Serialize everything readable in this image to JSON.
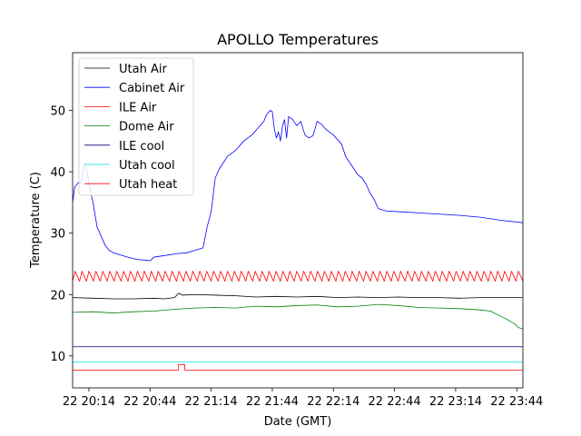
{
  "chart_data": {
    "type": "line",
    "title": "APOLLO Temperatures",
    "xlabel": "Date (GMT)",
    "ylabel": "Temperature (C)",
    "xlim": [
      0,
      221
    ],
    "ylim": [
      4.8,
      59.4
    ],
    "x_ticks": [
      {
        "x": 8,
        "label": "22 20:14"
      },
      {
        "x": 38,
        "label": "22 20:44"
      },
      {
        "x": 68,
        "label": "22 21:14"
      },
      {
        "x": 98,
        "label": "22 21:44"
      },
      {
        "x": 128,
        "label": "22 22:14"
      },
      {
        "x": 158,
        "label": "22 22:44"
      },
      {
        "x": 188,
        "label": "22 23:14"
      },
      {
        "x": 218,
        "label": "22 23:44"
      }
    ],
    "y_ticks": [
      {
        "y": 10,
        "label": "10"
      },
      {
        "y": 20,
        "label": "20"
      },
      {
        "y": 30,
        "label": "30"
      },
      {
        "y": 40,
        "label": "40"
      },
      {
        "y": 50,
        "label": "50"
      }
    ],
    "legend": {
      "position": "upper-left",
      "entries": [
        {
          "name": "Utah Air",
          "color": "#000000"
        },
        {
          "name": "Cabinet Air",
          "color": "#0000ff"
        },
        {
          "name": "ILE Air",
          "color": "#ff0000"
        },
        {
          "name": "Dome Air",
          "color": "#008000"
        },
        {
          "name": "ILE cool",
          "color": "#000080"
        },
        {
          "name": "Utah cool",
          "color": "#00e5e5"
        },
        {
          "name": "Utah heat",
          "color": "#ff0000"
        }
      ]
    },
    "series": [
      {
        "name": "Utah Air",
        "color": "#000000",
        "points": [
          [
            0,
            19.5
          ],
          [
            10,
            19.4
          ],
          [
            20,
            19.3
          ],
          [
            30,
            19.3
          ],
          [
            40,
            19.4
          ],
          [
            45,
            19.3
          ],
          [
            50,
            19.5
          ],
          [
            52,
            20.2
          ],
          [
            54,
            19.9
          ],
          [
            60,
            20.0
          ],
          [
            70,
            19.9
          ],
          [
            80,
            19.8
          ],
          [
            90,
            19.6
          ],
          [
            100,
            19.7
          ],
          [
            110,
            19.6
          ],
          [
            120,
            19.7
          ],
          [
            130,
            19.5
          ],
          [
            140,
            19.6
          ],
          [
            150,
            19.5
          ],
          [
            160,
            19.6
          ],
          [
            170,
            19.5
          ],
          [
            180,
            19.5
          ],
          [
            190,
            19.4
          ],
          [
            200,
            19.5
          ],
          [
            210,
            19.5
          ],
          [
            221,
            19.5
          ]
        ]
      },
      {
        "name": "Cabinet Air",
        "color": "#0000ff",
        "points": [
          [
            0,
            35.0
          ],
          [
            1,
            37.5
          ],
          [
            3,
            38.3
          ],
          [
            4,
            38.0
          ],
          [
            5,
            40.0
          ],
          [
            6,
            41.5
          ],
          [
            7,
            40.5
          ],
          [
            8,
            38.0
          ],
          [
            10,
            35.0
          ],
          [
            12,
            31.0
          ],
          [
            14,
            29.5
          ],
          [
            16,
            28.0
          ],
          [
            18,
            27.2
          ],
          [
            20,
            26.8
          ],
          [
            24,
            26.4
          ],
          [
            28,
            26.0
          ],
          [
            32,
            25.7
          ],
          [
            36,
            25.6
          ],
          [
            38,
            25.5
          ],
          [
            40,
            26.1
          ],
          [
            44,
            26.3
          ],
          [
            48,
            26.5
          ],
          [
            52,
            26.7
          ],
          [
            56,
            26.8
          ],
          [
            60,
            27.2
          ],
          [
            64,
            27.6
          ],
          [
            66,
            31.0
          ],
          [
            68,
            33.5
          ],
          [
            70,
            39.0
          ],
          [
            72,
            40.5
          ],
          [
            74,
            41.5
          ],
          [
            76,
            42.5
          ],
          [
            80,
            43.5
          ],
          [
            84,
            45.0
          ],
          [
            88,
            46.0
          ],
          [
            92,
            47.5
          ],
          [
            94,
            48.3
          ],
          [
            95,
            49.2
          ],
          [
            97,
            50.0
          ],
          [
            98,
            49.8
          ],
          [
            99,
            47.0
          ],
          [
            100,
            45.5
          ],
          [
            101,
            46.5
          ],
          [
            102,
            45.0
          ],
          [
            103,
            47.5
          ],
          [
            104,
            48.5
          ],
          [
            105,
            45.5
          ],
          [
            106,
            49.0
          ],
          [
            108,
            48.5
          ],
          [
            110,
            47.5
          ],
          [
            112,
            48.2
          ],
          [
            114,
            46.0
          ],
          [
            116,
            45.5
          ],
          [
            118,
            45.9
          ],
          [
            120,
            48.2
          ],
          [
            122,
            47.8
          ],
          [
            124,
            47.0
          ],
          [
            128,
            46.0
          ],
          [
            132,
            44.5
          ],
          [
            134,
            42.5
          ],
          [
            136,
            41.5
          ],
          [
            138,
            40.5
          ],
          [
            140,
            39.5
          ],
          [
            142,
            39.0
          ],
          [
            144,
            38.0
          ],
          [
            146,
            36.5
          ],
          [
            148,
            35.5
          ],
          [
            150,
            34.0
          ],
          [
            154,
            33.6
          ],
          [
            160,
            33.5
          ],
          [
            170,
            33.3
          ],
          [
            180,
            33.1
          ],
          [
            190,
            32.9
          ],
          [
            200,
            32.6
          ],
          [
            210,
            32.1
          ],
          [
            221,
            31.7
          ]
        ]
      },
      {
        "name": "ILE Air",
        "color": "#ff0000",
        "sawtooth": {
          "mean": 22.9,
          "amplitude": 0.9,
          "period": 3.4
        }
      },
      {
        "name": "Dome Air",
        "color": "#008000",
        "points": [
          [
            0,
            17.1
          ],
          [
            10,
            17.2
          ],
          [
            20,
            17.0
          ],
          [
            30,
            17.2
          ],
          [
            40,
            17.3
          ],
          [
            50,
            17.6
          ],
          [
            60,
            17.8
          ],
          [
            70,
            17.9
          ],
          [
            80,
            17.8
          ],
          [
            90,
            18.1
          ],
          [
            100,
            18.0
          ],
          [
            110,
            18.2
          ],
          [
            120,
            18.3
          ],
          [
            130,
            18.0
          ],
          [
            140,
            18.1
          ],
          [
            150,
            18.4
          ],
          [
            160,
            18.2
          ],
          [
            170,
            17.9
          ],
          [
            180,
            17.8
          ],
          [
            190,
            17.7
          ],
          [
            200,
            17.5
          ],
          [
            205,
            17.3
          ],
          [
            210,
            16.5
          ],
          [
            214,
            15.8
          ],
          [
            217,
            15.2
          ],
          [
            219,
            14.6
          ],
          [
            221,
            14.4
          ]
        ]
      },
      {
        "name": "ILE cool",
        "color": "#000080",
        "points": [
          [
            0,
            11.5
          ],
          [
            221,
            11.5
          ]
        ]
      },
      {
        "name": "Utah cool",
        "color": "#00e5e5",
        "points": [
          [
            0,
            9.0
          ],
          [
            221,
            9.0
          ]
        ]
      },
      {
        "name": "Utah heat",
        "color": "#ff0000",
        "points": [
          [
            0,
            7.7
          ],
          [
            52,
            7.7
          ],
          [
            52,
            8.6
          ],
          [
            55,
            8.6
          ],
          [
            55,
            7.7
          ],
          [
            221,
            7.7
          ]
        ]
      }
    ]
  }
}
